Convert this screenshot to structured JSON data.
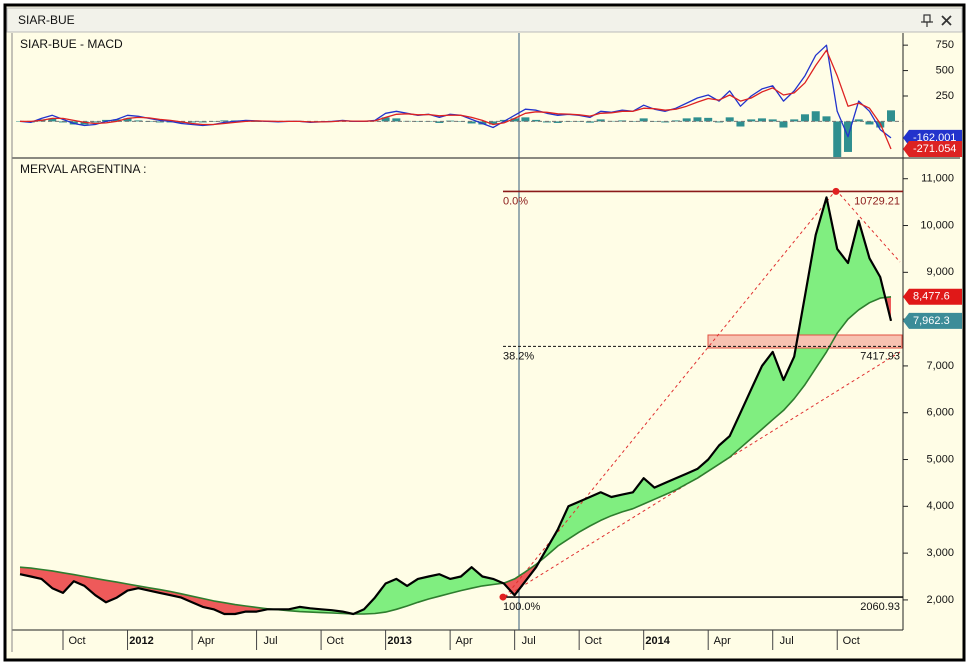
{
  "window_title": "SIAR-BUE",
  "chart_data": [
    {
      "type": "line",
      "title": "SIAR-BUE - MACD",
      "ylim": [
        -340,
        840
      ],
      "yticks": [
        750,
        500,
        250
      ],
      "zero_line": true,
      "series": [
        {
          "name": "histogram",
          "style": "bar",
          "color": "#2f8f8f",
          "values": [
            0,
            -10,
            20,
            30,
            -10,
            -30,
            -30,
            -10,
            15,
            20,
            30,
            10,
            -5,
            -10,
            -10,
            -15,
            -10,
            -10,
            0,
            10,
            10,
            10,
            0,
            -3,
            -5,
            0,
            0,
            -5,
            0,
            2,
            5,
            -3,
            -2,
            5,
            40,
            30,
            5,
            -5,
            2,
            -15,
            8,
            0,
            -20,
            -30,
            -30,
            15,
            30,
            40,
            15,
            -10,
            -15,
            -2,
            -5,
            -12,
            20,
            5,
            10,
            0,
            30,
            -5,
            -10,
            10,
            30,
            40,
            35,
            -10,
            40,
            -50,
            20,
            30,
            20,
            -60,
            20,
            70,
            100,
            50,
            -350,
            -300,
            20,
            -30,
            -60,
            109.05
          ]
        },
        {
          "name": "macd",
          "style": "line",
          "color": "#2233cc",
          "badge_color": "#2233cc",
          "values": [
            0,
            -10,
            30,
            60,
            20,
            -20,
            -40,
            -30,
            0,
            20,
            60,
            50,
            30,
            10,
            0,
            -20,
            -30,
            -40,
            -30,
            -10,
            0,
            10,
            5,
            0,
            -5,
            0,
            0,
            -10,
            -5,
            0,
            10,
            0,
            0,
            10,
            80,
            100,
            80,
            60,
            70,
            40,
            70,
            60,
            20,
            -20,
            -60,
            0,
            60,
            120,
            110,
            80,
            60,
            70,
            60,
            40,
            100,
            90,
            110,
            100,
            160,
            120,
            100,
            130,
            180,
            230,
            260,
            200,
            300,
            150,
            250,
            320,
            350,
            200,
            300,
            450,
            650,
            750,
            100,
            -150,
            200,
            100,
            -80,
            -162.001
          ],
          "value_labels": [
            null,
            null,
            null,
            null,
            null,
            null,
            null,
            null,
            null,
            null,
            null,
            null,
            null,
            null,
            null,
            null,
            null,
            null,
            null,
            null,
            null,
            null,
            null,
            null,
            null,
            null,
            null,
            null,
            null,
            null,
            null,
            null,
            null,
            null,
            null,
            null,
            null,
            null,
            null,
            null,
            null,
            null,
            null,
            null,
            null,
            null,
            null,
            null,
            null,
            null,
            null,
            null,
            null,
            null,
            null,
            null,
            null,
            null,
            null,
            null,
            null,
            null,
            null,
            null,
            null,
            null,
            null,
            null,
            null,
            null,
            null,
            null,
            null,
            null,
            null,
            null,
            null,
            null,
            null,
            null,
            null,
            "-162.001"
          ]
        },
        {
          "name": "signal",
          "style": "line",
          "color": "#dd2222",
          "badge_color": "#dd2222",
          "values": [
            0,
            0,
            10,
            30,
            30,
            10,
            -10,
            -20,
            -15,
            0,
            30,
            40,
            35,
            20,
            10,
            -5,
            -20,
            -30,
            -30,
            -20,
            -10,
            0,
            5,
            3,
            0,
            0,
            0,
            -5,
            -5,
            -2,
            5,
            3,
            2,
            5,
            40,
            70,
            75,
            65,
            68,
            55,
            62,
            60,
            40,
            10,
            -30,
            -15,
            30,
            80,
            95,
            90,
            75,
            72,
            65,
            52,
            80,
            85,
            100,
            100,
            130,
            125,
            110,
            120,
            150,
            190,
            225,
            210,
            260,
            200,
            230,
            290,
            330,
            260,
            280,
            380,
            550,
            700,
            450,
            150,
            180,
            130,
            -20,
            -271.054
          ],
          "value_labels": [
            null,
            null,
            null,
            null,
            null,
            null,
            null,
            null,
            null,
            null,
            null,
            null,
            null,
            null,
            null,
            null,
            null,
            null,
            null,
            null,
            null,
            null,
            null,
            null,
            null,
            null,
            null,
            null,
            null,
            null,
            null,
            null,
            null,
            null,
            null,
            null,
            null,
            null,
            null,
            null,
            null,
            null,
            null,
            null,
            null,
            null,
            null,
            null,
            null,
            null,
            null,
            null,
            null,
            null,
            null,
            null,
            null,
            null,
            null,
            null,
            null,
            null,
            null,
            null,
            null,
            null,
            null,
            null,
            null,
            null,
            null,
            null,
            null,
            null,
            null,
            null,
            null,
            null,
            null,
            null,
            null,
            "-271.054"
          ]
        }
      ]
    },
    {
      "type": "line",
      "title": "MERVAL ARGENTINA :",
      "categories": [
        null,
        null,
        null,
        null,
        "Oct",
        null,
        null,
        null,
        null,
        null,
        "2012",
        null,
        null,
        null,
        null,
        null,
        "Apr",
        null,
        null,
        null,
        null,
        null,
        "Jul",
        null,
        null,
        null,
        null,
        null,
        "Oct",
        null,
        null,
        null,
        null,
        null,
        "2013",
        null,
        null,
        null,
        null,
        null,
        "Apr",
        null,
        null,
        null,
        null,
        null,
        "Jul",
        null,
        null,
        null,
        null,
        null,
        "Oct",
        null,
        null,
        null,
        null,
        null,
        "2014",
        null,
        null,
        null,
        null,
        null,
        "Apr",
        null,
        null,
        null,
        null,
        null,
        "Jul",
        null,
        null,
        null,
        null,
        null,
        "Oct",
        null,
        null,
        null,
        null,
        null
      ],
      "ylim": [
        1400,
        11400
      ],
      "yticks": [
        {
          "value": 2000,
          "label": "2,000"
        },
        {
          "value": 3000,
          "label": "3,000"
        },
        {
          "value": 4000,
          "label": "4,000"
        },
        {
          "value": 5000,
          "label": "5,000"
        },
        {
          "value": 6000,
          "label": "6,000"
        },
        {
          "value": 7000,
          "label": "7,000"
        },
        {
          "value": 8000,
          "label": "8,000"
        },
        {
          "value": 9000,
          "label": "9,000"
        },
        {
          "value": 10000,
          "label": "10,000"
        },
        {
          "value": 11000,
          "label": "11,000"
        }
      ],
      "fill_above": "#80ee80",
      "fill_below": "#ee5a5a",
      "series": [
        {
          "name": "moving-average",
          "style": "line",
          "color": "#2e7d2e",
          "badge_color": "#e01818",
          "values": [
            2700,
            2680,
            2650,
            2620,
            2580,
            2540,
            2500,
            2460,
            2420,
            2380,
            2340,
            2300,
            2260,
            2220,
            2180,
            2130,
            2080,
            2030,
            1980,
            1940,
            1900,
            1870,
            1840,
            1810,
            1790,
            1770,
            1750,
            1740,
            1730,
            1720,
            1710,
            1700,
            1700,
            1710,
            1740,
            1800,
            1870,
            1950,
            2020,
            2080,
            2140,
            2200,
            2250,
            2300,
            2330,
            2360,
            2450,
            2600,
            2760,
            2950,
            3150,
            3300,
            3450,
            3580,
            3700,
            3800,
            3880,
            3950,
            4050,
            4150,
            4250,
            4350,
            4480,
            4600,
            4750,
            4900,
            5050,
            5250,
            5450,
            5650,
            5850,
            6050,
            6300,
            6600,
            6950,
            7300,
            7700,
            8000,
            8200,
            8350,
            8450,
            8477.6
          ],
          "value_labels": [
            null,
            null,
            null,
            null,
            null,
            null,
            null,
            null,
            null,
            null,
            null,
            null,
            null,
            null,
            null,
            null,
            null,
            null,
            null,
            null,
            null,
            null,
            null,
            null,
            null,
            null,
            null,
            null,
            null,
            null,
            null,
            null,
            null,
            null,
            null,
            null,
            null,
            null,
            null,
            null,
            null,
            null,
            null,
            null,
            null,
            null,
            null,
            null,
            null,
            null,
            null,
            null,
            null,
            null,
            null,
            null,
            null,
            null,
            null,
            null,
            null,
            null,
            null,
            null,
            null,
            null,
            null,
            null,
            null,
            null,
            null,
            null,
            null,
            null,
            null,
            null,
            null,
            null,
            null,
            null,
            null,
            "8,477.6"
          ]
        },
        {
          "name": "price",
          "style": "line",
          "color": "#000000",
          "badge_color": "#3c8c98",
          "values": [
            2550,
            2500,
            2450,
            2250,
            2150,
            2400,
            2300,
            2100,
            1950,
            2050,
            2200,
            2250,
            2200,
            2150,
            2100,
            2050,
            1950,
            1850,
            1800,
            1700,
            1700,
            1750,
            1750,
            1800,
            1800,
            1800,
            1850,
            1820,
            1800,
            1780,
            1750,
            1700,
            1800,
            2050,
            2350,
            2450,
            2300,
            2450,
            2500,
            2550,
            2450,
            2500,
            2700,
            2500,
            2450,
            2350,
            2100,
            2400,
            2700,
            3100,
            3500,
            4000,
            4100,
            4200,
            4300,
            4200,
            4250,
            4300,
            4600,
            4400,
            4500,
            4600,
            4700,
            4800,
            5000,
            5300,
            5500,
            6000,
            6500,
            7000,
            7300,
            6700,
            7200,
            8500,
            9800,
            10600,
            9500,
            9200,
            10100,
            9300,
            8900,
            7962.3
          ],
          "value_labels": [
            null,
            null,
            null,
            null,
            null,
            null,
            null,
            null,
            null,
            null,
            null,
            null,
            null,
            null,
            null,
            null,
            null,
            null,
            null,
            null,
            null,
            null,
            null,
            null,
            null,
            null,
            null,
            null,
            null,
            null,
            null,
            null,
            null,
            null,
            null,
            null,
            null,
            null,
            null,
            null,
            null,
            null,
            null,
            null,
            null,
            null,
            null,
            null,
            null,
            null,
            null,
            null,
            null,
            null,
            null,
            null,
            null,
            null,
            null,
            null,
            null,
            null,
            null,
            null,
            null,
            null,
            null,
            null,
            null,
            null,
            null,
            null,
            null,
            null,
            null,
            null,
            null,
            null,
            null,
            null,
            null,
            "7,962.3"
          ]
        }
      ],
      "fib_levels": [
        {
          "label": "0.0%",
          "value": 10729.21,
          "color": "#8b1a1a",
          "dashed": false
        },
        {
          "label": "38.2%",
          "value": 7417.93,
          "color": "#111111",
          "dashed": true
        },
        {
          "label": "100.0%",
          "value": 2060.93,
          "color": "#111111",
          "dashed": false
        }
      ]
    }
  ]
}
